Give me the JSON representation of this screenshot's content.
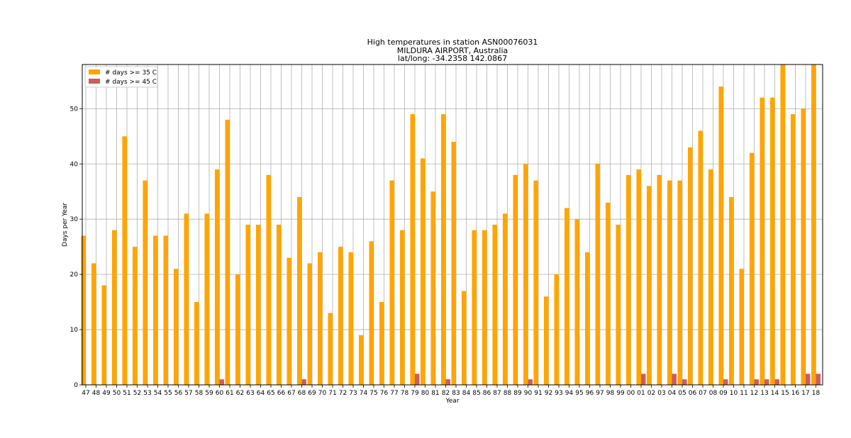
{
  "chart_data": {
    "type": "bar",
    "title": [
      "High temperatures in station ASN00076031",
      "MILDURA AIRPORT, Australia",
      "lat/long: -34.2358 142.0867"
    ],
    "xlabel": "Year",
    "ylabel": "Days per Year",
    "ylim": [
      0,
      58
    ],
    "yticks": [
      0,
      10,
      20,
      30,
      40,
      50
    ],
    "grid": true,
    "legend_position": "top-left",
    "categories": [
      "47",
      "48",
      "49",
      "50",
      "51",
      "52",
      "53",
      "54",
      "55",
      "56",
      "57",
      "58",
      "59",
      "60",
      "61",
      "62",
      "63",
      "64",
      "65",
      "66",
      "67",
      "68",
      "69",
      "70",
      "71",
      "72",
      "73",
      "74",
      "75",
      "76",
      "77",
      "78",
      "79",
      "80",
      "81",
      "82",
      "83",
      "84",
      "85",
      "86",
      "87",
      "88",
      "89",
      "90",
      "91",
      "92",
      "93",
      "94",
      "95",
      "96",
      "97",
      "98",
      "99",
      "00",
      "01",
      "02",
      "03",
      "04",
      "05",
      "06",
      "07",
      "08",
      "09",
      "10",
      "11",
      "12",
      "13",
      "14",
      "15",
      "16",
      "17",
      "18"
    ],
    "series": [
      {
        "name": "# days >= 35 C",
        "color": "#ffa500",
        "values": [
          27,
          22,
          18,
          28,
          45,
          25,
          37,
          27,
          27,
          21,
          31,
          15,
          31,
          39,
          48,
          20,
          29,
          29,
          38,
          29,
          23,
          34,
          22,
          24,
          13,
          25,
          24,
          9,
          26,
          15,
          37,
          28,
          49,
          41,
          35,
          49,
          44,
          17,
          28,
          28,
          29,
          31,
          38,
          40,
          37,
          16,
          20,
          32,
          30,
          24,
          40,
          33,
          29,
          38,
          39,
          36,
          38,
          37,
          37,
          43,
          46,
          39,
          54,
          34,
          21,
          42,
          52,
          52,
          58,
          49,
          50,
          58
        ]
      },
      {
        "name": "# days >= 45 C",
        "color": "#cd5c5c",
        "values": [
          0,
          0,
          0,
          0,
          0,
          0,
          0,
          0,
          0,
          0,
          0,
          0,
          0,
          1,
          0,
          0,
          0,
          0,
          0,
          0,
          0,
          1,
          0,
          0,
          0,
          0,
          0,
          0,
          0,
          0,
          0,
          0,
          2,
          0,
          0,
          1,
          0,
          0,
          0,
          0,
          0,
          0,
          0,
          1,
          0,
          0,
          0,
          0,
          0,
          0,
          0,
          0,
          0,
          0,
          2,
          0,
          0,
          2,
          1,
          0,
          0,
          0,
          1,
          0,
          0,
          1,
          1,
          1,
          0,
          0,
          2,
          2
        ]
      }
    ]
  }
}
